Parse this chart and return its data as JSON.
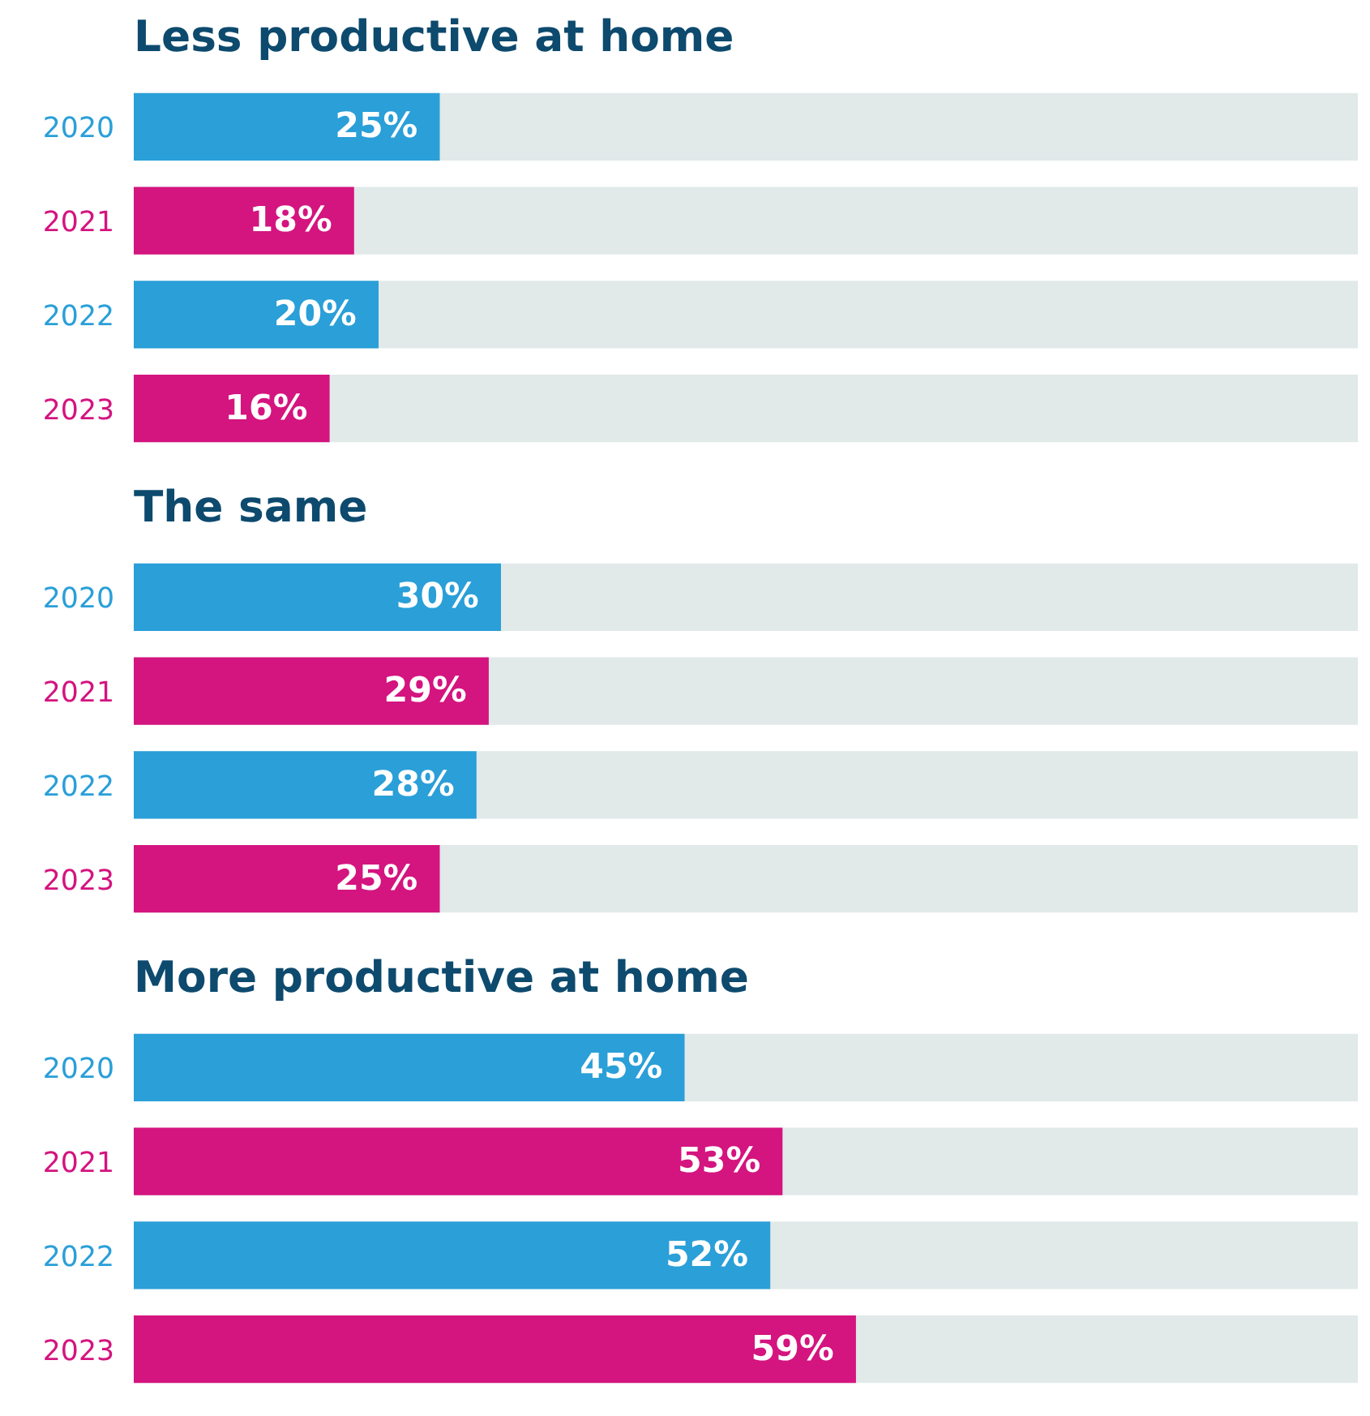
{
  "chart_data": [
    {
      "type": "bar",
      "orientation": "horizontal",
      "title": "Less productive at home",
      "categories": [
        "2020",
        "2021",
        "2022",
        "2023"
      ],
      "values": [
        25,
        18,
        20,
        16
      ],
      "colors": [
        "#2a9fd8",
        "#d4147f",
        "#2a9fd8",
        "#d4147f"
      ],
      "value_labels": [
        "25%",
        "18%",
        "20%",
        "16%"
      ],
      "xlim": [
        0,
        100
      ],
      "tick_labels": "y"
    },
    {
      "type": "bar",
      "orientation": "horizontal",
      "title": "The same",
      "categories": [
        "2020",
        "2021",
        "2022",
        "2023"
      ],
      "values": [
        30,
        29,
        28,
        25
      ],
      "colors": [
        "#2a9fd8",
        "#d4147f",
        "#2a9fd8",
        "#d4147f"
      ],
      "value_labels": [
        "30%",
        "29%",
        "28%",
        "25%"
      ],
      "xlim": [
        0,
        100
      ],
      "tick_labels": "y"
    },
    {
      "type": "bar",
      "orientation": "horizontal",
      "title": "More productive at home",
      "categories": [
        "2020",
        "2021",
        "2022",
        "2023"
      ],
      "values": [
        45,
        53,
        52,
        59
      ],
      "colors": [
        "#2a9fd8",
        "#d4147f",
        "#2a9fd8",
        "#d4147f"
      ],
      "value_labels": [
        "45%",
        "53%",
        "52%",
        "59%"
      ],
      "xlim": [
        0,
        100
      ],
      "tick_labels": "y"
    }
  ]
}
